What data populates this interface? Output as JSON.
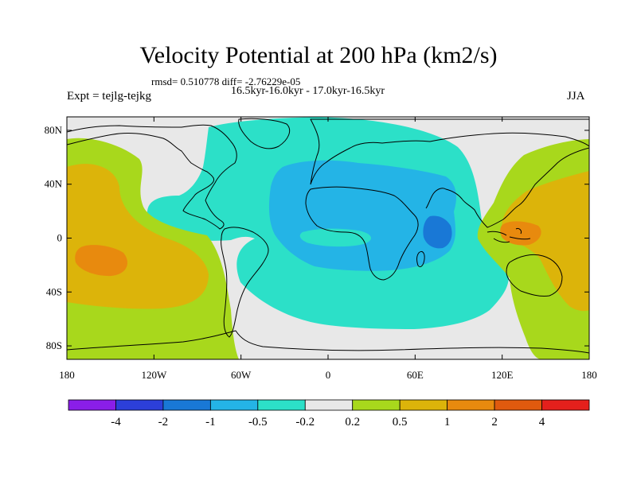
{
  "title": "Velocity Potential at 200 hPa (km2/s)",
  "stats": "rmsd= 0.510778 diff= -2.76229e-05",
  "period": "16.5kyr-16.0kyr - 17.0kyr-16.5kyr",
  "experiment": "Expt = tejlg-tejkg",
  "season": "JJA",
  "map": {
    "projection": "cylindrical equidistant",
    "lon_range": [
      -180,
      180
    ],
    "lat_range": [
      -90,
      90
    ],
    "lat_ticks": [
      {
        "value": 80,
        "label": "80N"
      },
      {
        "value": 40,
        "label": "40N"
      },
      {
        "value": 0,
        "label": "0"
      },
      {
        "value": -40,
        "label": "40S"
      },
      {
        "value": -80,
        "label": "80S"
      }
    ],
    "lon_ticks": [
      {
        "value": -180,
        "label": "180"
      },
      {
        "value": -120,
        "label": "120W"
      },
      {
        "value": -60,
        "label": "60W"
      },
      {
        "value": 0,
        "label": "0"
      },
      {
        "value": 60,
        "label": "60E"
      },
      {
        "value": 120,
        "label": "120E"
      },
      {
        "value": 180,
        "label": "180"
      }
    ]
  },
  "colorbar": {
    "colors": [
      "#8a1ee8",
      "#2c3fd9",
      "#1978d6",
      "#24b4e6",
      "#2ce0c8",
      "#e8e8e8",
      "#a8d81c",
      "#dcb40a",
      "#e88a0e",
      "#e05a0e",
      "#e4201c"
    ],
    "labels": [
      "-4",
      "-2",
      "-1",
      "-0.5",
      "-0.2",
      "0.2",
      "0.5",
      "1",
      "2",
      "4"
    ]
  }
}
